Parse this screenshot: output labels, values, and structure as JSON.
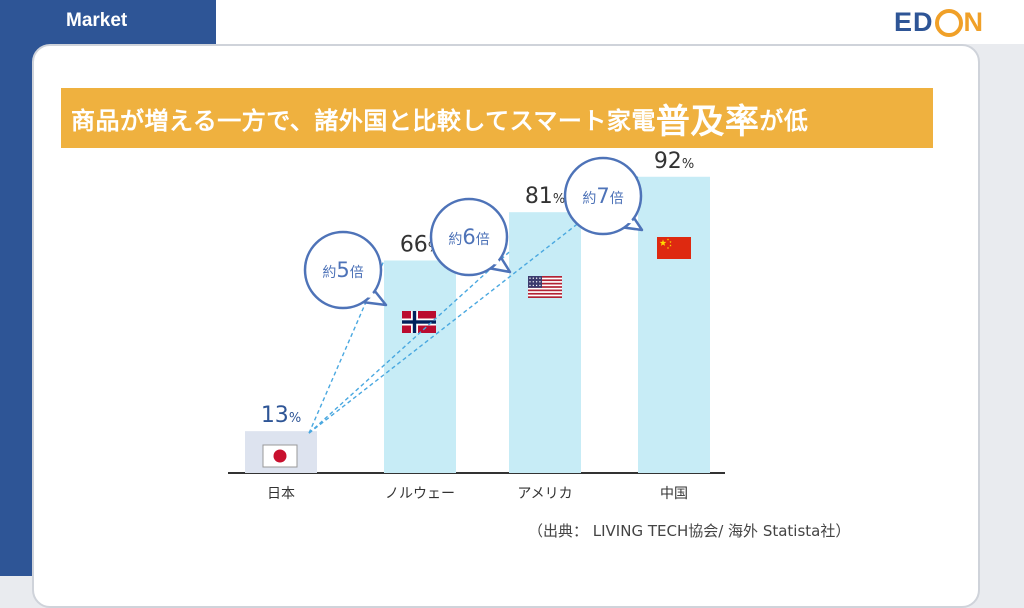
{
  "header": {
    "section_label": "Market",
    "logo": {
      "left": "ED",
      "right": "N"
    }
  },
  "headline": {
    "part1": "商品が増える一方で、諸外国と比較してスマート家電",
    "emphasis": "普及率",
    "part2": "が低"
  },
  "chart_data": {
    "type": "bar",
    "title": "",
    "xlabel": "",
    "ylabel": "",
    "ylim": [
      0,
      100
    ],
    "grid": false,
    "categories": [
      "日本",
      "ノルウェー",
      "アメリカ",
      "中国"
    ],
    "values": [
      13,
      66,
      81,
      92
    ],
    "value_unit": "%",
    "flags": [
      "japan-flag-icon",
      "norway-flag-icon",
      "usa-flag-icon",
      "china-flag-icon"
    ],
    "colors": {
      "base_bar": "#dde3ef",
      "bar": "#c7ecf6",
      "label": "#333333",
      "base_label": "#2e5596",
      "bubble": "#4e73b8"
    },
    "callouts": [
      {
        "label": "約",
        "multiplier": "5",
        "suffix": "倍",
        "target": "ノルウェー"
      },
      {
        "label": "約",
        "multiplier": "6",
        "suffix": "倍",
        "target": "アメリカ"
      },
      {
        "label": "約",
        "multiplier": "7",
        "suffix": "倍",
        "target": "中国"
      }
    ]
  },
  "source": "（出典：  LIVING TECH協会/ 海外 Statista社）"
}
